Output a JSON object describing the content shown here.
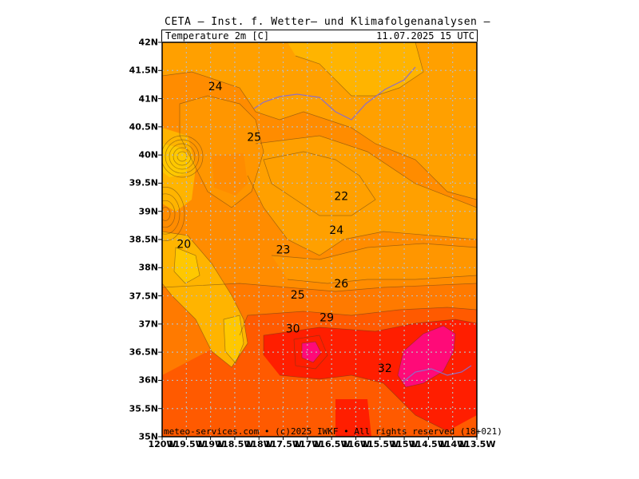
{
  "header": {
    "title": "CETA – Inst. f. Wetter– und Klimafolgenanalysen –",
    "variable": "Temperature 2m [C]",
    "valid_time": "11.07.2025 15 UTC"
  },
  "map": {
    "region": {
      "lon_min": -120,
      "lon_max": -113.5,
      "lat_min": 35,
      "lat_max": 42
    },
    "lat_labels": [
      "42N",
      "41.5N",
      "41N",
      "40.5N",
      "40N",
      "39.5N",
      "39N",
      "38.5N",
      "38N",
      "37.5N",
      "37N",
      "36.5N",
      "36N",
      "35.5N",
      "35N"
    ],
    "lon_labels": [
      "120W",
      "119.5W",
      "119W",
      "118.5W",
      "118W",
      "117.5W",
      "117W",
      "116.5W",
      "116W",
      "115.5W",
      "115W",
      "114.5W",
      "114W",
      "113.5W"
    ],
    "contour_labels": [
      {
        "text": "24",
        "lon": -118.9,
        "lat": 41.15
      },
      {
        "text": "25",
        "lon": -118.1,
        "lat": 40.25
      },
      {
        "text": "22",
        "lon": -116.3,
        "lat": 39.2
      },
      {
        "text": "24",
        "lon": -116.4,
        "lat": 38.6
      },
      {
        "text": "23",
        "lon": -117.5,
        "lat": 38.25
      },
      {
        "text": "20",
        "lon": -119.55,
        "lat": 38.35
      },
      {
        "text": "26",
        "lon": -116.3,
        "lat": 37.65
      },
      {
        "text": "25",
        "lon": -117.2,
        "lat": 37.45
      },
      {
        "text": "29",
        "lon": -116.6,
        "lat": 37.05
      },
      {
        "text": "30",
        "lon": -117.3,
        "lat": 36.85
      },
      {
        "text": "32",
        "lon": -115.4,
        "lat": 36.15
      }
    ],
    "colors": {
      "c20": "#ffc800",
      "c22": "#ffb400",
      "c23": "#ffa000",
      "c24": "#ff9600",
      "c25": "#ff8c00",
      "c26": "#ff7a00",
      "c28": "#ff5a00",
      "c30": "#ff1e00",
      "c32": "#ff0a78",
      "grid": "#bbbbbb",
      "border": "#8c6ec8"
    },
    "credit": "meteo-services.com • (c)2025 IWKF • All rights reserved (18+021)"
  }
}
